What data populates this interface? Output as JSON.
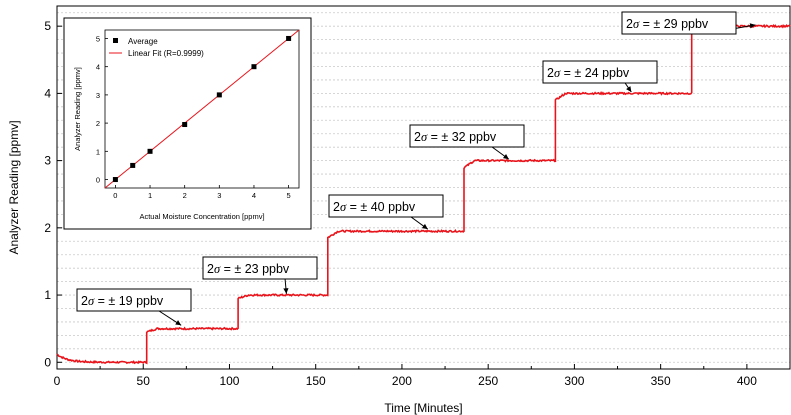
{
  "chart_data": [
    {
      "type": "line",
      "xlabel": "Time [Minutes]",
      "ylabel": "Analyzer Reading [ppmv]",
      "xlim": [
        0,
        425
      ],
      "ylim": [
        -0.1,
        5.3
      ],
      "xticks": [
        0,
        50,
        100,
        150,
        200,
        250,
        300,
        350,
        400
      ],
      "yticks": [
        0,
        1,
        2,
        3,
        4,
        5
      ],
      "grid": true,
      "color": "#e8141b",
      "steps": [
        {
          "t_start": 0,
          "t_end": 52,
          "level": 0.0
        },
        {
          "t_start": 52,
          "t_end": 105,
          "level": 0.5
        },
        {
          "t_start": 105,
          "t_end": 157,
          "level": 1.0
        },
        {
          "t_start": 157,
          "t_end": 236,
          "level": 1.95
        },
        {
          "t_start": 236,
          "t_end": 289,
          "level": 3.0
        },
        {
          "t_start": 289,
          "t_end": 368,
          "level": 4.0
        },
        {
          "t_start": 368,
          "t_end": 425,
          "level": 5.0
        }
      ],
      "annotations": [
        {
          "prefix": "2",
          "sigma": "σ",
          "text": " = ± 19 ppbv",
          "x": 72,
          "y": 0.55
        },
        {
          "prefix": "2",
          "sigma": "σ",
          "text": " = ± 23 ppbv",
          "x": 133,
          "y": 1.02
        },
        {
          "prefix": "2",
          "sigma": "σ",
          "text": " = ± 40 ppbv",
          "x": 215,
          "y": 1.98
        },
        {
          "prefix": "2",
          "sigma": "σ",
          "text": " = ± 32 ppbv",
          "x": 262,
          "y": 3.02
        },
        {
          "prefix": "2",
          "sigma": "σ",
          "text": " = ± 24 ppbv",
          "x": 333,
          "y": 4.02
        },
        {
          "prefix": "2",
          "sigma": "σ",
          "text": " = ± 29 ppbv",
          "x": 405,
          "y": 5.02
        }
      ]
    },
    {
      "type": "scatter",
      "inset": true,
      "xlabel": "Actual Moisture Concentration [ppmv]",
      "ylabel": "Analyzer Reading [ppmv]",
      "xlim": [
        -0.3,
        5.3
      ],
      "ylim": [
        -0.3,
        5.3
      ],
      "xticks": [
        0,
        1,
        2,
        3,
        4,
        5
      ],
      "yticks": [
        0,
        1,
        2,
        3,
        4,
        5
      ],
      "legend": "top-left",
      "series": [
        {
          "name": "Average",
          "marker": "square",
          "color": "#000000",
          "x": [
            0,
            0.5,
            1,
            2,
            3,
            4,
            5
          ],
          "y": [
            0.0,
            0.5,
            1.0,
            1.95,
            3.0,
            4.0,
            5.0
          ]
        },
        {
          "name": "Linear Fit (R=0.9999)",
          "marker": "line",
          "color": "#e8141b",
          "x": [
            -0.3,
            5.3
          ],
          "y": [
            -0.3,
            5.3
          ]
        }
      ]
    }
  ]
}
